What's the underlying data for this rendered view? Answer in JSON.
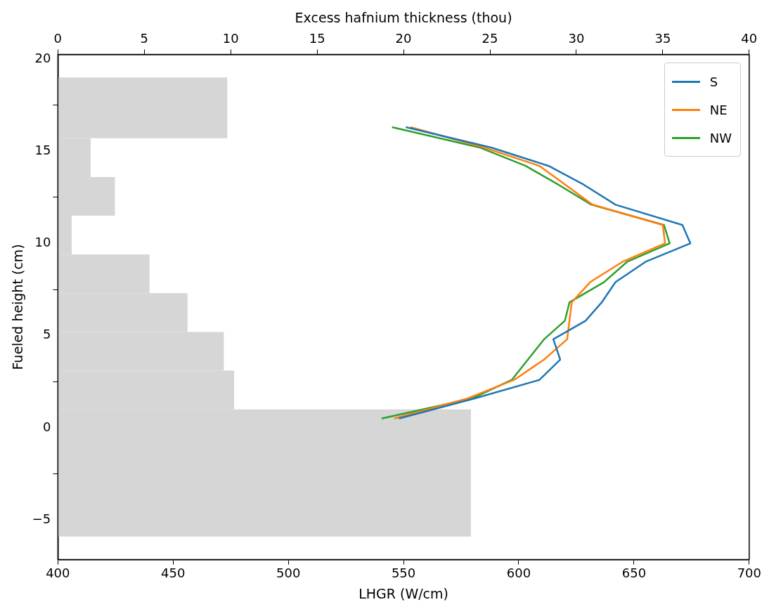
{
  "chart_data": {
    "type": "line",
    "xlabel": "LHGR (W/cm)",
    "ylabel": "Fueled height (cm)",
    "x2label": "Excess hafnium thickness (thou)",
    "xlim": [
      400,
      700
    ],
    "xticks": [
      400,
      450,
      500,
      550,
      600,
      650,
      700
    ],
    "x2lim": [
      0,
      40
    ],
    "x2ticks": [
      0,
      5,
      10,
      15,
      20,
      25,
      30,
      35,
      40
    ],
    "ylim": [
      -7.15,
      20.25
    ],
    "yticks": [
      -5,
      0,
      5,
      10,
      15,
      20
    ],
    "grid": false,
    "legend": "top right",
    "orientation": "horizontal",
    "series": [
      {
        "type": "histogram",
        "axis": "x2",
        "color": "#d6d6d6",
        "bins": [
          -5.9,
          1.0,
          3.1,
          5.2,
          7.3,
          9.4,
          11.5,
          13.6,
          15.7,
          19.0
        ],
        "values": [
          23.9,
          10.2,
          9.6,
          7.5,
          5.3,
          0.8,
          3.3,
          1.9,
          9.8
        ]
      },
      {
        "name": "S",
        "color": "#1f77b4",
        "values": [
          548,
          581,
          609,
          618,
          615,
          629,
          636,
          642,
          655,
          674.5,
          671,
          642,
          628,
          613,
          588,
          551
        ],
        "x": [
          0.5,
          1.6,
          2.6,
          3.7,
          4.8,
          5.8,
          6.8,
          7.9,
          9.0,
          10.0,
          11.0,
          12.1,
          13.2,
          14.2,
          15.2,
          16.3
        ]
      },
      {
        "name": "NE",
        "color": "#ff7f0e",
        "values": [
          546,
          578,
          598,
          611,
          621,
          622,
          623,
          631,
          645,
          663.5,
          662.5,
          632,
          620,
          609,
          585,
          553
        ],
        "x": [
          0.5,
          1.6,
          2.6,
          3.7,
          4.8,
          5.8,
          6.8,
          7.9,
          9.0,
          10.0,
          11.0,
          12.1,
          13.2,
          14.2,
          15.2,
          16.3
        ]
      },
      {
        "name": "NW",
        "color": "#2ca02c",
        "values": [
          540.5,
          580,
          597,
          604,
          611,
          620,
          622,
          637,
          647,
          665.5,
          663,
          631.5,
          617,
          603,
          583,
          545
        ],
        "x": [
          0.5,
          1.6,
          2.6,
          3.7,
          4.8,
          5.8,
          6.8,
          7.9,
          9.0,
          10.0,
          11.0,
          12.1,
          13.2,
          14.2,
          15.2,
          16.3
        ]
      }
    ]
  }
}
